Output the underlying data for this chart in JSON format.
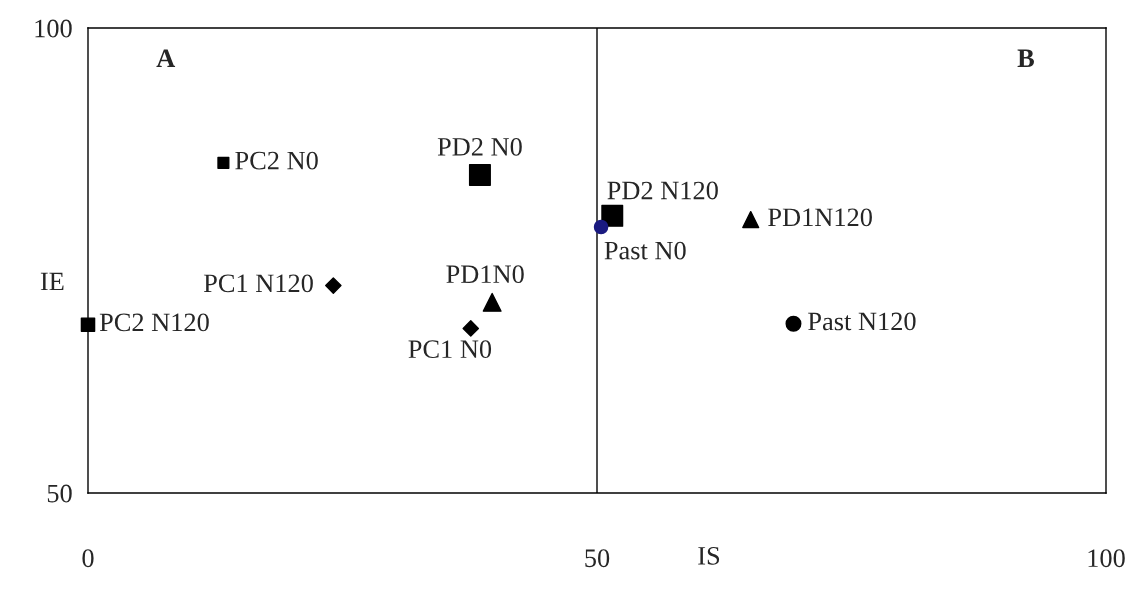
{
  "chart_data": {
    "type": "scatter",
    "xlabel": "IS",
    "ylabel": "IE",
    "xlim": [
      0,
      100
    ],
    "xticks": [
      0,
      50,
      100
    ],
    "ylim": [
      50,
      100
    ],
    "yticks": [
      50,
      100
    ],
    "grid": false,
    "legend": false,
    "ref_lines": [
      {
        "axis": "x",
        "value": 50,
        "color": "#000000",
        "line_style": "solid"
      }
    ],
    "annotations": [
      "A",
      "B"
    ],
    "series": [
      {
        "name": "PC2 N0",
        "color": "#000000",
        "marker": "square",
        "x": [
          13.3
        ],
        "values": [
          85.5
        ]
      },
      {
        "name": "PD2 N0",
        "color": "#000000",
        "marker": "square",
        "x": [
          38.5
        ],
        "values": [
          84.2
        ]
      },
      {
        "name": "PD2 N120",
        "color": "#000000",
        "marker": "square",
        "x": [
          51.5
        ],
        "values": [
          79.8
        ]
      },
      {
        "name": "Past N0",
        "color": "#1a1a80",
        "marker": "circle",
        "x": [
          50.4
        ],
        "values": [
          78.6
        ]
      },
      {
        "name": "PD1N120",
        "color": "#000000",
        "marker": "triangle",
        "x": [
          65.1
        ],
        "values": [
          79.4
        ]
      },
      {
        "name": "PC1 N120",
        "color": "#000000",
        "marker": "diamond",
        "x": [
          24.1
        ],
        "values": [
          72.3
        ]
      },
      {
        "name": "PD1N0",
        "color": "#000000",
        "marker": "triangle",
        "x": [
          39.7
        ],
        "values": [
          70.5
        ]
      },
      {
        "name": "PC1 N0",
        "color": "#000000",
        "marker": "diamond",
        "x": [
          37.6
        ],
        "values": [
          67.7
        ]
      },
      {
        "name": "PC2 N120",
        "color": "#000000",
        "marker": "square",
        "x": [
          0
        ],
        "values": [
          68.1
        ]
      },
      {
        "name": "Past N120",
        "color": "#000000",
        "marker": "circle",
        "x": [
          69.3
        ],
        "values": [
          68.2
        ]
      }
    ]
  }
}
